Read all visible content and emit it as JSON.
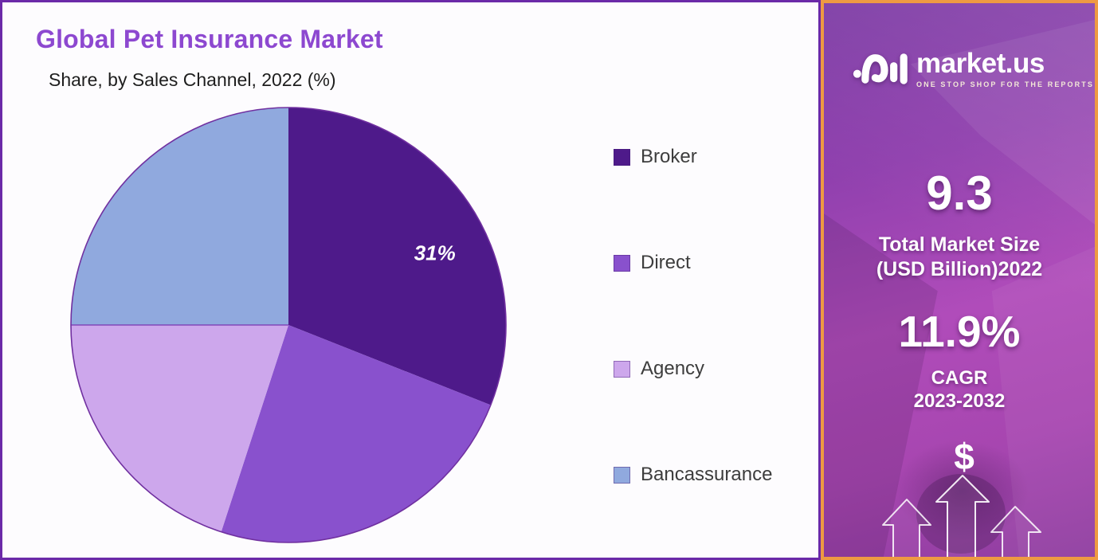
{
  "chart_data": {
    "type": "pie",
    "title": "Global Pet Insurance Market",
    "subtitle": "Share, by Sales Channel, 2022 (%)",
    "categories": [
      "Broker",
      "Direct",
      "Agency",
      "Bancassurance"
    ],
    "values": [
      31,
      24,
      20,
      25
    ],
    "slice_labels": [
      "31%",
      "",
      "",
      ""
    ],
    "colors": [
      "#4e1a8a",
      "#8951cd",
      "#cda7ec",
      "#90a9de"
    ],
    "legend_position": "right",
    "start_angle_deg": 0,
    "direction": "clockwise",
    "boundary_line": {
      "after_slice": 3,
      "color": "#7a35b0"
    },
    "label_position_hint": {
      "radius_frac": 0.75,
      "angle_offset_deg": 8
    }
  },
  "sidebar": {
    "brand": {
      "name": "market.us",
      "tagline": "ONE STOP SHOP FOR THE REPORTS"
    },
    "stats": [
      {
        "value": "9.3",
        "label_line1": "Total Market Size",
        "label_line2": "(USD Billion)2022"
      },
      {
        "value": "11.9%",
        "label_line1": "CAGR",
        "label_line2": "2023-2032"
      }
    ],
    "dollar_symbol": "$"
  },
  "colors": {
    "title_purple": "#8d48d0",
    "panel_border": "#6b2aa8",
    "sidebar_border": "#ee9a42",
    "sidebar_gradient_top": "#7c3aa4",
    "sidebar_gradient_mid": "#b04cba",
    "sidebar_gradient_bottom": "#8f3da0",
    "pie_outline": "#7030a0"
  }
}
